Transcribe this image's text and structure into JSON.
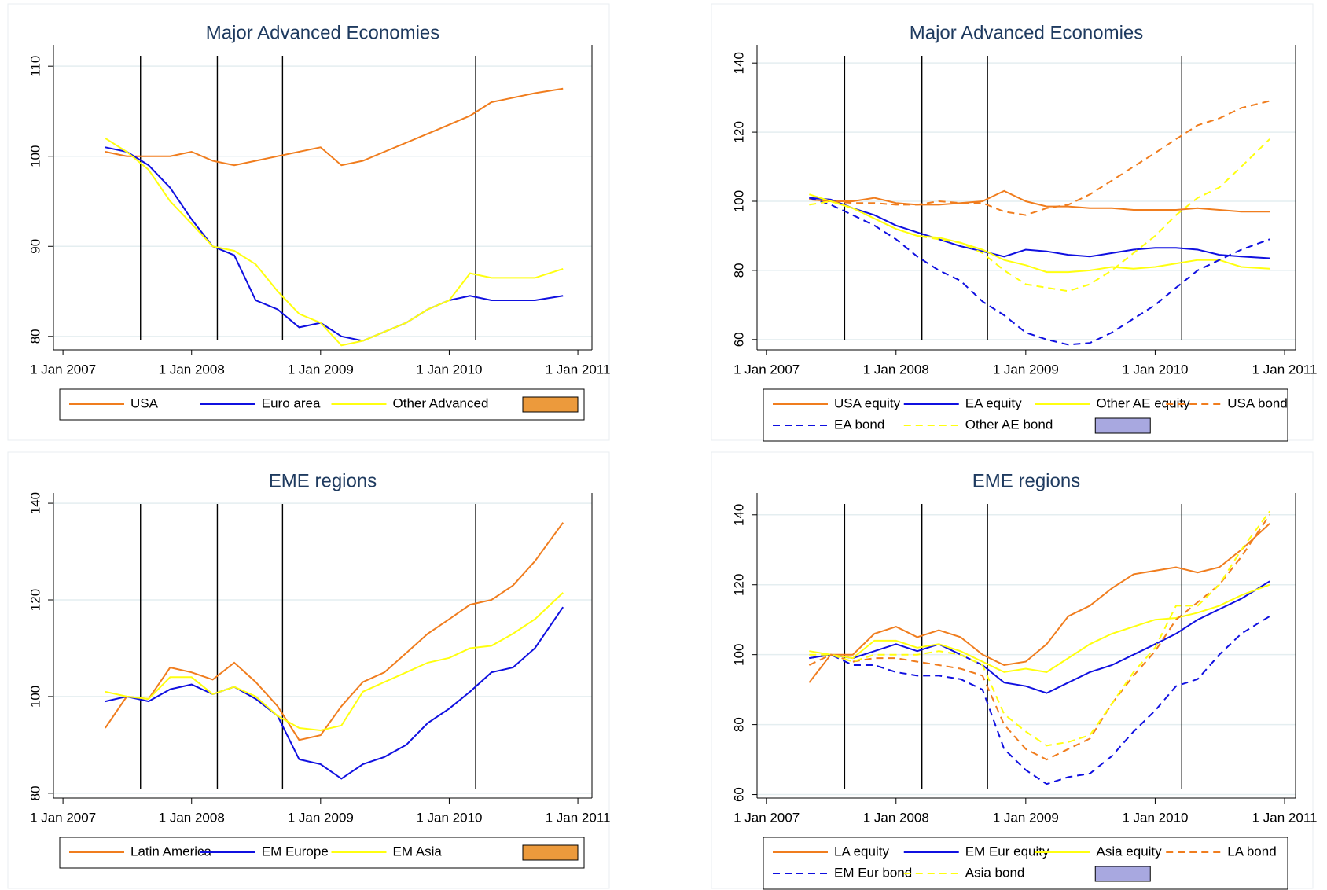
{
  "chart_data": [
    {
      "type": "line",
      "title": "Major Advanced Economies",
      "x": [
        "2007-05-01",
        "2007-07-01",
        "2007-09-01",
        "2007-11-01",
        "2008-01-01",
        "2008-03-01",
        "2008-05-01",
        "2008-07-01",
        "2008-09-01",
        "2008-11-01",
        "2009-01-01",
        "2009-03-01",
        "2009-05-01",
        "2009-07-01",
        "2009-09-01",
        "2009-11-01",
        "2010-01-01",
        "2010-03-01",
        "2010-05-01",
        "2010-07-01",
        "2010-09-01",
        "2010-11-20"
      ],
      "xlim": [
        "2006-12-05",
        "2011-02-10"
      ],
      "xticks": [
        {
          "value": "2007-01-01",
          "label": "1 Jan 2007"
        },
        {
          "value": "2008-01-01",
          "label": "1 Jan 2008"
        },
        {
          "value": "2009-01-01",
          "label": "1 Jan 2009"
        },
        {
          "value": "2010-01-01",
          "label": "1 Jan 2010"
        },
        {
          "value": "2011-01-01",
          "label": "1 Jan 2011"
        }
      ],
      "ylim": [
        78.5,
        111.5
      ],
      "yticks": [
        80,
        90,
        100,
        110
      ],
      "grid": true,
      "event_lines": [
        "2007-08-09",
        "2008-03-14",
        "2008-09-15",
        "2010-03-17"
      ],
      "legend_columns": 4,
      "legend_box_color": "#ec9a3c",
      "series": [
        {
          "name": "USA",
          "color": "#f07d1e",
          "dashed": false,
          "values": [
            100.5,
            100,
            100,
            100,
            100.5,
            99.5,
            99,
            99.5,
            100,
            100.5,
            101,
            99,
            99.5,
            100.5,
            101.5,
            102.5,
            103.5,
            104.5,
            106,
            106.5,
            107,
            107.5
          ]
        },
        {
          "name": "Euro area",
          "color": "#1010e0",
          "dashed": false,
          "values": [
            101,
            100.5,
            99,
            96.5,
            93,
            90,
            89,
            84,
            83,
            81,
            81.5,
            80,
            79.5,
            80.5,
            81.5,
            83,
            84,
            84.5,
            84,
            84,
            84,
            84.5
          ]
        },
        {
          "name": "Other Advanced",
          "color": "#ffff10",
          "dashed": false,
          "values": [
            102,
            100.5,
            98.5,
            95,
            92.5,
            90,
            89.5,
            88,
            85,
            82.5,
            81.5,
            79,
            79.5,
            80.5,
            81.5,
            83,
            84,
            87,
            86.5,
            86.5,
            86.5,
            87.5
          ]
        }
      ]
    },
    {
      "type": "line",
      "title": "Major Advanced Economies",
      "x": [
        "2007-05-01",
        "2007-07-01",
        "2007-09-01",
        "2007-11-01",
        "2008-01-01",
        "2008-03-01",
        "2008-05-01",
        "2008-07-01",
        "2008-09-01",
        "2008-11-01",
        "2009-01-01",
        "2009-03-01",
        "2009-05-01",
        "2009-07-01",
        "2009-09-01",
        "2009-11-01",
        "2010-01-01",
        "2010-03-01",
        "2010-05-01",
        "2010-07-01",
        "2010-09-01",
        "2010-11-20"
      ],
      "xlim": [
        "2006-12-05",
        "2011-02-01"
      ],
      "xticks": [
        {
          "value": "2007-01-01",
          "label": "1 Jan 2007"
        },
        {
          "value": "2008-01-01",
          "label": "1 Jan 2008"
        },
        {
          "value": "2009-01-01",
          "label": "1 Jan 2009"
        },
        {
          "value": "2010-01-01",
          "label": "1 Jan 2010"
        },
        {
          "value": "2011-01-01",
          "label": "1 Jan 2011"
        }
      ],
      "ylim": [
        57,
        143
      ],
      "yticks": [
        60,
        80,
        100,
        120,
        140
      ],
      "grid": true,
      "event_lines": [
        "2007-08-09",
        "2008-03-14",
        "2008-09-15",
        "2010-03-17"
      ],
      "legend_columns": 4,
      "legend_box_color": "#a8a8e0",
      "series": [
        {
          "name": "USA equity",
          "color": "#f07d1e",
          "dashed": false,
          "values": [
            100.5,
            100,
            100,
            101,
            99.5,
            99,
            99,
            99.5,
            100,
            103,
            100,
            98.5,
            98.5,
            98,
            98,
            97.5,
            97.5,
            97.5,
            98,
            97.5,
            97,
            97
          ]
        },
        {
          "name": "EA equity",
          "color": "#1010e0",
          "dashed": false,
          "values": [
            101,
            100.5,
            98,
            96,
            93,
            91,
            89,
            87,
            85.5,
            84,
            86,
            85.5,
            84.5,
            84,
            85,
            86,
            86.5,
            86.5,
            86,
            84.5,
            84,
            83.5
          ]
        },
        {
          "name": "Other AE equity",
          "color": "#ffff10",
          "dashed": false,
          "values": [
            102,
            100,
            98,
            95,
            92,
            90,
            89.5,
            88,
            86,
            83,
            81.5,
            79.5,
            79.5,
            80,
            81,
            80.5,
            81,
            82,
            83,
            83,
            81,
            80.5
          ]
        },
        {
          "name": "USA bond",
          "color": "#f07d1e",
          "dashed": true,
          "values": [
            100.5,
            100,
            99.5,
            99.5,
            99,
            99,
            100,
            99.5,
            99.5,
            97,
            96,
            98,
            99,
            102,
            106,
            110,
            114,
            118,
            122,
            124,
            127,
            129
          ]
        },
        {
          "name": "EA bond",
          "color": "#1010e0",
          "dashed": true,
          "values": [
            101,
            99,
            96,
            93,
            89,
            84,
            80,
            77,
            71,
            67,
            62,
            60,
            58.5,
            59,
            62,
            66,
            70,
            75,
            80,
            83,
            86,
            89
          ]
        },
        {
          "name": "Other AE bond",
          "color": "#ffff10",
          "dashed": true,
          "values": [
            99,
            100,
            98,
            95,
            92,
            90,
            89,
            88,
            85,
            80,
            76,
            75,
            74,
            76,
            80,
            85,
            90,
            96,
            101,
            104,
            110,
            118
          ]
        }
      ]
    },
    {
      "type": "line",
      "title": "EME regions",
      "x": [
        "2007-05-01",
        "2007-07-01",
        "2007-09-01",
        "2007-11-01",
        "2008-01-01",
        "2008-03-01",
        "2008-05-01",
        "2008-07-01",
        "2008-09-01",
        "2008-11-01",
        "2009-01-01",
        "2009-03-01",
        "2009-05-01",
        "2009-07-01",
        "2009-09-01",
        "2009-11-01",
        "2010-01-01",
        "2010-03-01",
        "2010-05-01",
        "2010-07-01",
        "2010-09-01",
        "2010-11-20"
      ],
      "xlim": [
        "2006-12-05",
        "2011-02-10"
      ],
      "xticks": [
        {
          "value": "2007-01-01",
          "label": "1 Jan 2007"
        },
        {
          "value": "2008-01-01",
          "label": "1 Jan 2008"
        },
        {
          "value": "2009-01-01",
          "label": "1 Jan 2009"
        },
        {
          "value": "2010-01-01",
          "label": "1 Jan 2010"
        },
        {
          "value": "2011-01-01",
          "label": "1 Jan 2011"
        }
      ],
      "ylim": [
        79,
        140.5
      ],
      "yticks": [
        80,
        100,
        120,
        140
      ],
      "grid": true,
      "event_lines": [
        "2007-08-09",
        "2008-03-14",
        "2008-09-15",
        "2010-03-17"
      ],
      "legend_columns": 4,
      "legend_box_color": "#ec9a3c",
      "series": [
        {
          "name": "Latin America",
          "color": "#f07d1e",
          "dashed": false,
          "values": [
            93.5,
            100,
            99.5,
            106,
            105,
            103.5,
            107,
            103,
            98,
            91,
            92,
            98,
            103,
            105,
            109,
            113,
            116,
            119,
            120,
            123,
            128,
            136
          ]
        },
        {
          "name": "EM Europe",
          "color": "#1010e0",
          "dashed": false,
          "values": [
            99,
            100,
            99,
            101.5,
            102.5,
            100.5,
            102,
            99.5,
            96,
            87,
            86,
            83,
            86,
            87.5,
            90,
            94.5,
            97.5,
            101,
            105,
            106,
            110,
            118.5
          ]
        },
        {
          "name": "EM Asia",
          "color": "#ffff10",
          "dashed": false,
          "values": [
            101,
            100,
            99.5,
            104,
            104,
            100.5,
            102,
            100,
            96,
            93.5,
            93,
            94,
            101,
            103,
            105,
            107,
            108,
            110,
            110.5,
            113,
            116,
            121.5
          ]
        }
      ]
    },
    {
      "type": "line",
      "title": "EME regions",
      "x": [
        "2007-05-01",
        "2007-07-01",
        "2007-09-01",
        "2007-11-01",
        "2008-01-01",
        "2008-03-01",
        "2008-05-01",
        "2008-07-01",
        "2008-09-01",
        "2008-11-01",
        "2009-01-01",
        "2009-03-01",
        "2009-05-01",
        "2009-07-01",
        "2009-09-01",
        "2009-11-01",
        "2010-01-01",
        "2010-03-01",
        "2010-05-01",
        "2010-07-01",
        "2010-09-01",
        "2010-11-20"
      ],
      "xlim": [
        "2006-12-05",
        "2011-02-01"
      ],
      "xticks": [
        {
          "value": "2007-01-01",
          "label": "1 Jan 2007"
        },
        {
          "value": "2008-01-01",
          "label": "1 Jan 2008"
        },
        {
          "value": "2009-01-01",
          "label": "1 Jan 2009"
        },
        {
          "value": "2010-01-01",
          "label": "1 Jan 2010"
        },
        {
          "value": "2011-01-01",
          "label": "1 Jan 2011"
        }
      ],
      "ylim": [
        59,
        144
      ],
      "yticks": [
        60,
        80,
        100,
        120,
        140
      ],
      "grid": true,
      "event_lines": [
        "2007-08-09",
        "2008-03-14",
        "2008-09-15",
        "2010-03-17"
      ],
      "legend_columns": 4,
      "legend_box_color": "#a8a8e0",
      "series": [
        {
          "name": "LA equity",
          "color": "#f07d1e",
          "dashed": false,
          "values": [
            92,
            100,
            100,
            106,
            108,
            105,
            107,
            105,
            100,
            97,
            98,
            103,
            111,
            114,
            119,
            123,
            124,
            125,
            123.5,
            125,
            130,
            137.5
          ]
        },
        {
          "name": "EM Eur equity",
          "color": "#1010e0",
          "dashed": false,
          "values": [
            99,
            100,
            99,
            101,
            103,
            101,
            103,
            100,
            97,
            92,
            91,
            89,
            92,
            95,
            97,
            100,
            103,
            106,
            110,
            113,
            116,
            121
          ]
        },
        {
          "name": "Asia equity",
          "color": "#ffff10",
          "dashed": false,
          "values": [
            101,
            100,
            99,
            104,
            104,
            102,
            103,
            101,
            98,
            95,
            96,
            95,
            99,
            103,
            106,
            108,
            110,
            110.5,
            112,
            114,
            117,
            120
          ]
        },
        {
          "name": "LA bond",
          "color": "#f07d1e",
          "dashed": true,
          "values": [
            97,
            100,
            98,
            99,
            99,
            98,
            97,
            96,
            94,
            80,
            73,
            70,
            73,
            76,
            86,
            94,
            101,
            110,
            115,
            120,
            128,
            140
          ]
        },
        {
          "name": "EM Eur bond",
          "color": "#1010e0",
          "dashed": true,
          "values": [
            99,
            100,
            97,
            97,
            95,
            94,
            94,
            93,
            90,
            73,
            67,
            63,
            65,
            66,
            71,
            78,
            84,
            91,
            93,
            100,
            106,
            111
          ]
        },
        {
          "name": "Asia bond",
          "color": "#ffff10",
          "dashed": true,
          "values": [
            100,
            100,
            98,
            100,
            100,
            100,
            101,
            100,
            97,
            83,
            78,
            74,
            75,
            77,
            86,
            95,
            102,
            114,
            114,
            120,
            130,
            141
          ]
        }
      ]
    }
  ]
}
